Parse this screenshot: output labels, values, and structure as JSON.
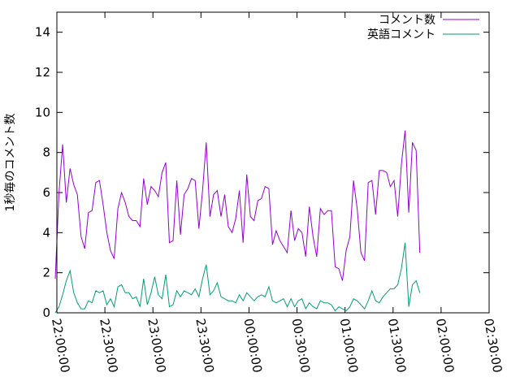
{
  "chart_data": {
    "type": "line",
    "title": "",
    "xlabel": "",
    "ylabel": "1秒毎のコメント数",
    "ylim": [
      0,
      15
    ],
    "xlim": [
      "22:00:00",
      "02:30:00"
    ],
    "x_ticks": [
      "22:00:00",
      "22:30:00",
      "23:00:00",
      "23:30:00",
      "00:00:00",
      "00:30:00",
      "01:00:00",
      "01:30:00",
      "02:00:00",
      "02:30:00"
    ],
    "y_ticks": [
      0,
      2,
      4,
      6,
      8,
      10,
      12,
      14
    ],
    "grid": false,
    "legend_position": "top-right",
    "series_start": "21:59:00",
    "series_step_minutes": 2.3,
    "series": [
      {
        "name": "コメント数",
        "color": "#9400d3",
        "values": [
          1.7,
          6.0,
          8.4,
          5.5,
          7.2,
          6.4,
          5.9,
          3.8,
          3.2,
          5.0,
          5.1,
          6.5,
          6.6,
          5.4,
          4.0,
          3.1,
          2.7,
          5.2,
          6.0,
          5.5,
          4.8,
          4.6,
          4.6,
          4.3,
          6.7,
          5.4,
          6.3,
          6.1,
          5.8,
          7.0,
          7.5,
          3.5,
          3.6,
          6.6,
          3.9,
          5.9,
          6.2,
          6.7,
          6.6,
          4.2,
          6.1,
          8.5,
          4.8,
          5.9,
          6.1,
          4.8,
          5.9,
          4.3,
          4.0,
          4.7,
          6.1,
          3.5,
          6.9,
          4.8,
          4.6,
          5.6,
          5.7,
          6.3,
          6.2,
          3.4,
          4.1,
          3.6,
          3.3,
          3.0,
          5.1,
          3.6,
          4.2,
          4.0,
          2.8,
          5.3,
          3.8,
          2.8,
          5.2,
          4.9,
          5.1,
          5.1,
          2.3,
          2.2,
          1.6,
          3.1,
          3.8,
          6.6,
          5.2,
          3.0,
          2.6,
          6.5,
          6.6,
          4.9,
          7.1,
          7.1,
          7.0,
          6.3,
          6.6,
          4.8,
          7.4,
          9.1,
          5.0,
          8.5,
          8.1,
          3.0
        ]
      },
      {
        "name": "英語コメント",
        "color": "#009e73",
        "values": [
          0.0,
          0.3,
          0.9,
          1.6,
          2.1,
          1.0,
          0.5,
          0.2,
          0.2,
          0.6,
          0.5,
          1.1,
          1.0,
          1.1,
          0.4,
          0.7,
          0.3,
          1.3,
          1.4,
          1.0,
          1.0,
          0.7,
          0.8,
          0.3,
          1.7,
          0.4,
          1.0,
          1.8,
          0.9,
          0.7,
          1.9,
          0.3,
          0.4,
          1.1,
          0.8,
          1.1,
          1.0,
          0.9,
          1.2,
          0.8,
          1.7,
          2.4,
          0.9,
          1.1,
          1.5,
          0.8,
          0.7,
          0.6,
          0.6,
          0.5,
          0.9,
          0.6,
          1.0,
          0.8,
          0.6,
          0.8,
          0.9,
          0.8,
          1.3,
          0.6,
          0.5,
          0.6,
          0.7,
          0.3,
          0.7,
          0.3,
          0.6,
          0.7,
          0.2,
          0.5,
          0.3,
          0.2,
          0.6,
          0.5,
          0.5,
          0.4,
          0.1,
          0.3,
          0.2,
          0.1,
          0.3,
          0.7,
          0.6,
          0.4,
          0.2,
          0.6,
          1.1,
          0.6,
          0.5,
          0.8,
          1.0,
          1.2,
          1.2,
          1.4,
          2.2,
          3.5,
          0.3,
          1.4,
          1.6,
          1.0
        ]
      }
    ]
  }
}
